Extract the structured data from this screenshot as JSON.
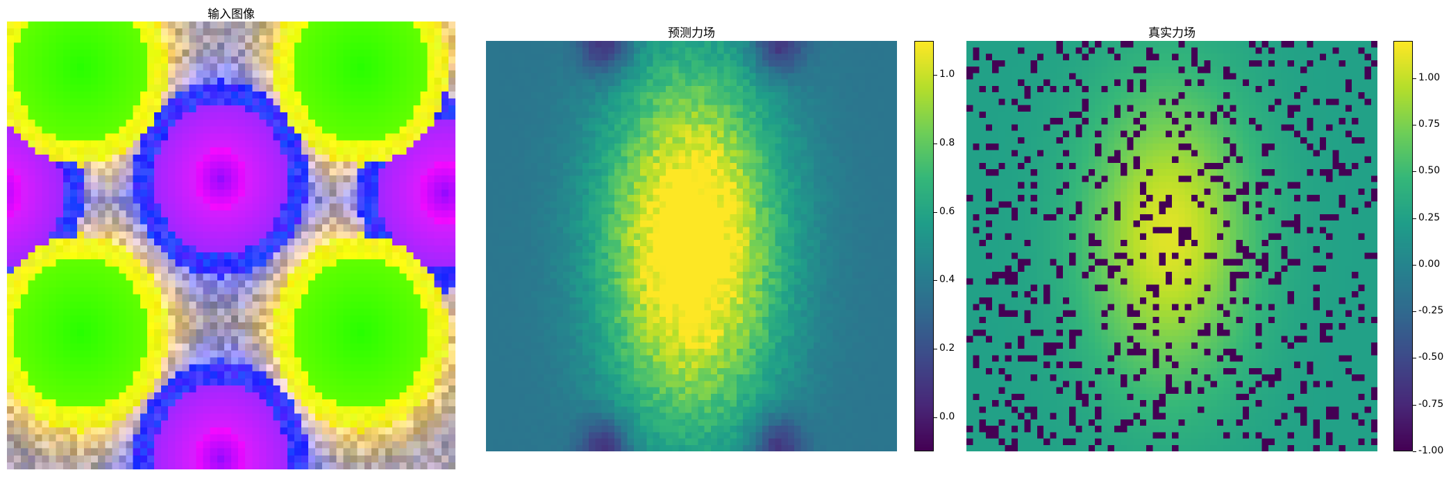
{
  "chart_data": [
    {
      "type": "heatmap",
      "title": "输入图像",
      "grid": false,
      "colorbar": false,
      "content": "rgb image of periodic circles: green blobs (top-left, top-right, bottom-left, bottom-right), magenta blobs (center, left edge, right edge, bottom center), yellow/blue rings, noisy gray background"
    },
    {
      "type": "heatmap",
      "title": "预测力场",
      "colormap": "viridis",
      "grid": false,
      "vmin": -0.1,
      "vmax": 1.1,
      "colorbar_ticks": [
        "0.0",
        "0.2",
        "0.4",
        "0.6",
        "0.8",
        "1.0"
      ],
      "colorbar_tick_values": [
        0.0,
        0.2,
        0.4,
        0.6,
        0.8,
        1.0
      ]
    },
    {
      "type": "heatmap",
      "title": "真实力场",
      "colormap": "viridis",
      "grid": false,
      "vmin": -1.0,
      "vmax": 1.2,
      "colorbar_ticks": [
        "1.00",
        "0.75",
        "0.50",
        "0.25",
        "0.00",
        "-0.25",
        "-0.50",
        "-0.75",
        "-1.00"
      ],
      "colorbar_tick_values": [
        1.0,
        0.75,
        0.5,
        0.25,
        0.0,
        -0.25,
        -0.5,
        -0.75,
        -1.0
      ]
    }
  ],
  "colors": {
    "viridis": [
      "#440154",
      "#482878",
      "#3e4989",
      "#31688e",
      "#26828e",
      "#1f9e89",
      "#35b779",
      "#6ece58",
      "#b5de2b",
      "#fde725"
    ]
  }
}
